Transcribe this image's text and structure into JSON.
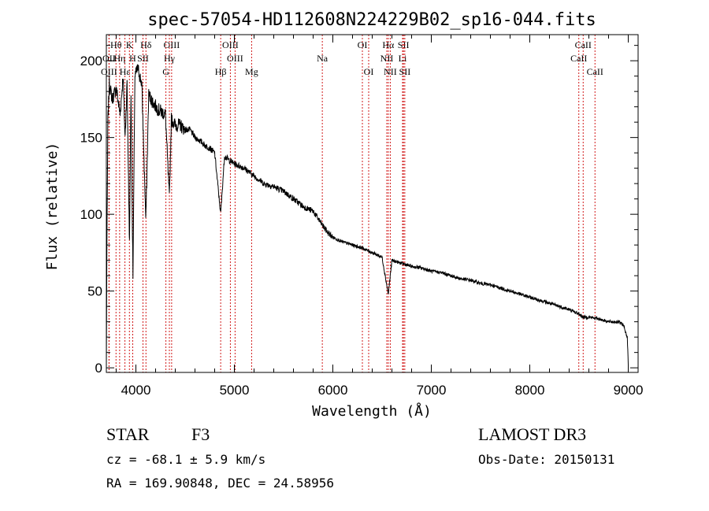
{
  "chart_data": {
    "type": "line",
    "title": "spec-57054-HD112608N224229B02_sp16-044.fits",
    "xlabel": "Wavelength (Å)",
    "ylabel": "Flux (relative)",
    "xlim": [
      3700,
      9100
    ],
    "ylim": [
      -3,
      217
    ],
    "x_ticks": [
      4000,
      5000,
      6000,
      7000,
      8000,
      9000
    ],
    "y_ticks": [
      0,
      50,
      100,
      150,
      200
    ],
    "spectrum_anchors": [
      [
        3700,
        0
      ],
      [
        3705,
        70
      ],
      [
        3715,
        160
      ],
      [
        3730,
        185
      ],
      [
        3760,
        175
      ],
      [
        3800,
        182
      ],
      [
        3840,
        165
      ],
      [
        3870,
        190
      ],
      [
        3890,
        150
      ],
      [
        3910,
        185
      ],
      [
        3935,
        80
      ],
      [
        3950,
        180
      ],
      [
        3970,
        60
      ],
      [
        3990,
        190
      ],
      [
        4020,
        195
      ],
      [
        4060,
        185
      ],
      [
        4101,
        95
      ],
      [
        4130,
        178
      ],
      [
        4180,
        172
      ],
      [
        4230,
        168
      ],
      [
        4300,
        165
      ],
      [
        4340,
        110
      ],
      [
        4360,
        162
      ],
      [
        4400,
        158
      ],
      [
        4450,
        158
      ],
      [
        4500,
        155
      ],
      [
        4550,
        155
      ],
      [
        4600,
        150
      ],
      [
        4650,
        148
      ],
      [
        4700,
        145
      ],
      [
        4750,
        143
      ],
      [
        4800,
        140
      ],
      [
        4861,
        100
      ],
      [
        4900,
        138
      ],
      [
        4950,
        135
      ],
      [
        5000,
        133
      ],
      [
        5100,
        130
      ],
      [
        5200,
        125
      ],
      [
        5300,
        120
      ],
      [
        5400,
        118
      ],
      [
        5500,
        115
      ],
      [
        5600,
        110
      ],
      [
        5700,
        105
      ],
      [
        5800,
        102
      ],
      [
        5893,
        93
      ],
      [
        5950,
        88
      ],
      [
        6000,
        85
      ],
      [
        6100,
        82
      ],
      [
        6200,
        80
      ],
      [
        6300,
        78
      ],
      [
        6400,
        75
      ],
      [
        6500,
        72
      ],
      [
        6563,
        48
      ],
      [
        6600,
        70
      ],
      [
        6700,
        68
      ],
      [
        6800,
        66
      ],
      [
        6900,
        65
      ],
      [
        7000,
        63
      ],
      [
        7100,
        62
      ],
      [
        7200,
        60
      ],
      [
        7300,
        58
      ],
      [
        7400,
        57
      ],
      [
        7500,
        55
      ],
      [
        7600,
        54
      ],
      [
        7700,
        52
      ],
      [
        7800,
        50
      ],
      [
        7900,
        48
      ],
      [
        8000,
        46
      ],
      [
        8100,
        44
      ],
      [
        8200,
        42
      ],
      [
        8300,
        40
      ],
      [
        8400,
        38
      ],
      [
        8500,
        35
      ],
      [
        8542,
        33
      ],
      [
        8600,
        33
      ],
      [
        8700,
        32
      ],
      [
        8800,
        30
      ],
      [
        8900,
        30
      ],
      [
        8950,
        28
      ],
      [
        8990,
        20
      ],
      [
        9000,
        2
      ]
    ],
    "line_markers": [
      {
        "label": "Hθ",
        "wavelength": 3798,
        "row": 0
      },
      {
        "label": "K",
        "wavelength": 3934,
        "row": 0
      },
      {
        "label": "Hδ",
        "wavelength": 4102,
        "row": 0
      },
      {
        "label": "OIII",
        "wavelength": 4363,
        "row": 0
      },
      {
        "label": "OIII",
        "wavelength": 4959,
        "row": 0
      },
      {
        "label": "OI",
        "wavelength": 6300,
        "row": 0
      },
      {
        "label": "Hα",
        "wavelength": 6563,
        "row": 0
      },
      {
        "label": "SII",
        "wavelength": 6717,
        "row": 0
      },
      {
        "label": "CaII",
        "wavelength": 8542,
        "row": 0
      },
      {
        "label": "OII",
        "wavelength": 3727,
        "row": 1
      },
      {
        "label": "Hη",
        "wavelength": 3835,
        "row": 1
      },
      {
        "label": "H",
        "wavelength": 3968,
        "row": 1
      },
      {
        "label": "SII",
        "wavelength": 4072,
        "row": 1
      },
      {
        "label": "Hγ",
        "wavelength": 4340,
        "row": 1
      },
      {
        "label": "OIII",
        "wavelength": 5007,
        "row": 1
      },
      {
        "label": "Na",
        "wavelength": 5893,
        "row": 1
      },
      {
        "label": "NII",
        "wavelength": 6548,
        "row": 1
      },
      {
        "label": "Li",
        "wavelength": 6708,
        "row": 1
      },
      {
        "label": "CaII",
        "wavelength": 8498,
        "row": 1
      },
      {
        "label": "OIII",
        "wavelength": 3727,
        "row": 2
      },
      {
        "label": "Hε",
        "wavelength": 3889,
        "row": 2
      },
      {
        "label": "G",
        "wavelength": 4305,
        "row": 2
      },
      {
        "label": "Hβ",
        "wavelength": 4861,
        "row": 2
      },
      {
        "label": "Mg",
        "wavelength": 5175,
        "row": 2
      },
      {
        "label": "OI",
        "wavelength": 6364,
        "row": 2
      },
      {
        "label": "NII",
        "wavelength": 6583,
        "row": 2
      },
      {
        "label": "SII",
        "wavelength": 6731,
        "row": 2
      },
      {
        "label": "CaII",
        "wavelength": 8662,
        "row": 2
      }
    ]
  },
  "info": {
    "class": "STAR",
    "subclass": "F3",
    "survey": "LAMOST DR3",
    "cz": "cz = -68.1 ± 5.9 km/s",
    "obs_date": "Obs-Date: 20150131",
    "coords": "RA = 169.90848, DEC =  24.58956"
  },
  "colors": {
    "spectrum": "#000000",
    "marker_line": "#cc0000"
  }
}
